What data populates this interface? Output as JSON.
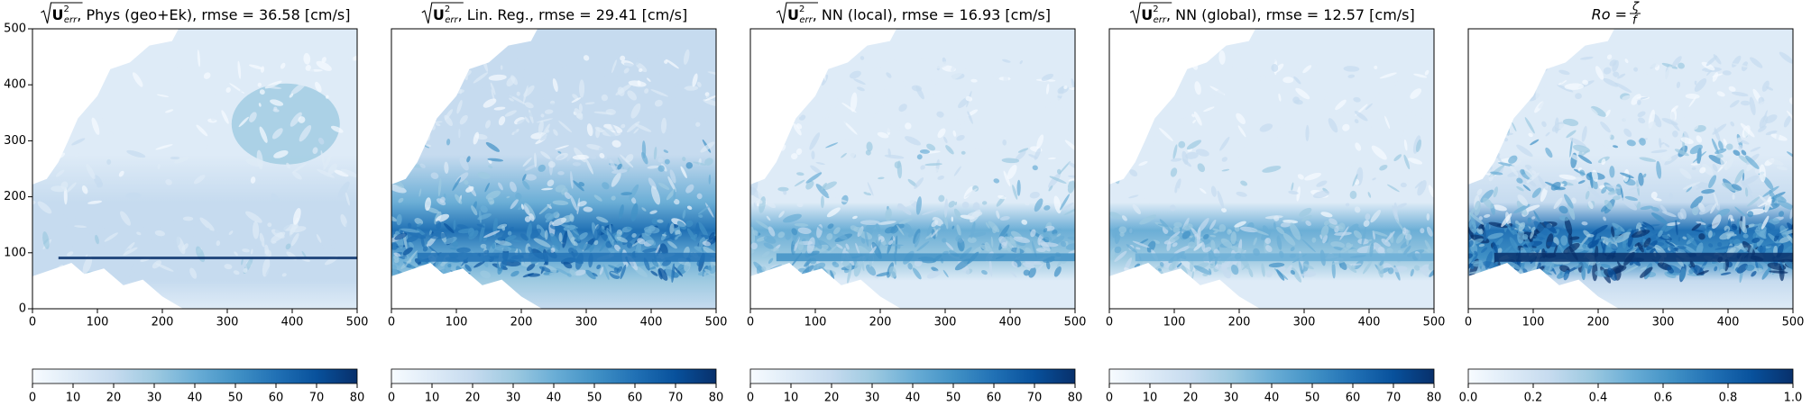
{
  "chart_data": [
    {
      "type": "heatmap",
      "title_symbol": "U",
      "title_sup": "2",
      "title_sub": "err",
      "title": ", Phys (geo+Ek), rmse = 36.58 [cm/s]",
      "xlim": [
        0,
        500
      ],
      "ylim": [
        0,
        500
      ],
      "xticks": [
        0,
        100,
        200,
        300,
        400,
        500
      ],
      "yticks": [
        0,
        100,
        200,
        300,
        400,
        500
      ],
      "colormap": [
        "#f7fbff",
        "#deebf7",
        "#c6dbef",
        "#9ecae1",
        "#6baed6",
        "#4292c6",
        "#2171b5",
        "#08519c",
        "#08306b"
      ],
      "colorbar": {
        "lim": [
          0,
          80
        ],
        "ticks": [
          0,
          10,
          20,
          30,
          40,
          50,
          60,
          70,
          80
        ]
      }
    },
    {
      "type": "heatmap",
      "title_symbol": "U",
      "title_sup": "2",
      "title_sub": "err",
      "title": ", Lin. Reg., rmse = 29.41 [cm/s]",
      "xlim": [
        0,
        500
      ],
      "ylim": [
        0,
        500
      ],
      "xticks": [
        0,
        100,
        200,
        300,
        400,
        500
      ],
      "colormap": [
        "#f7fbff",
        "#deebf7",
        "#c6dbef",
        "#9ecae1",
        "#6baed6",
        "#4292c6",
        "#2171b5",
        "#08519c",
        "#08306b"
      ],
      "colorbar": {
        "lim": [
          0,
          80
        ],
        "ticks": [
          0,
          10,
          20,
          30,
          40,
          50,
          60,
          70,
          80
        ]
      }
    },
    {
      "type": "heatmap",
      "title_symbol": "U",
      "title_sup": "2",
      "title_sub": "err",
      "title": ", NN (local), rmse = 16.93 [cm/s]",
      "xlim": [
        0,
        500
      ],
      "ylim": [
        0,
        500
      ],
      "xticks": [
        0,
        100,
        200,
        300,
        400,
        500
      ],
      "colormap": [
        "#f7fbff",
        "#deebf7",
        "#c6dbef",
        "#9ecae1",
        "#6baed6",
        "#4292c6",
        "#2171b5",
        "#08519c",
        "#08306b"
      ],
      "colorbar": {
        "lim": [
          0,
          80
        ],
        "ticks": [
          0,
          10,
          20,
          30,
          40,
          50,
          60,
          70,
          80
        ]
      }
    },
    {
      "type": "heatmap",
      "title_symbol": "U",
      "title_sup": "2",
      "title_sub": "err",
      "title": ", NN (global), rmse = 12.57 [cm/s]",
      "xlim": [
        0,
        500
      ],
      "ylim": [
        0,
        500
      ],
      "xticks": [
        0,
        100,
        200,
        300,
        400,
        500
      ],
      "colormap": [
        "#f7fbff",
        "#deebf7",
        "#c6dbef",
        "#9ecae1",
        "#6baed6",
        "#4292c6",
        "#2171b5",
        "#08519c",
        "#08306b"
      ],
      "colorbar": {
        "lim": [
          0,
          80
        ],
        "ticks": [
          0,
          10,
          20,
          30,
          40,
          50,
          60,
          70,
          80
        ]
      }
    },
    {
      "type": "heatmap",
      "title": "Ro = ",
      "title_num": "ζ",
      "title_den": "f",
      "xlim": [
        0,
        500
      ],
      "ylim": [
        0,
        500
      ],
      "xticks": [
        0,
        100,
        200,
        300,
        400,
        500
      ],
      "colormap": [
        "#f7fbff",
        "#deebf7",
        "#c6dbef",
        "#9ecae1",
        "#6baed6",
        "#4292c6",
        "#2171b5",
        "#08519c",
        "#08306b"
      ],
      "colorbar": {
        "lim": [
          0,
          1
        ],
        "ticks": [
          {
            "value": 0,
            "label": "0.0"
          },
          {
            "value": 0.2,
            "label": "0.2"
          },
          {
            "value": 0.4,
            "label": "0.4"
          },
          {
            "value": 0.6,
            "label": "0.6"
          },
          {
            "value": 0.8,
            "label": "0.8"
          },
          {
            "value": 1,
            "label": "1.0"
          }
        ]
      }
    }
  ]
}
